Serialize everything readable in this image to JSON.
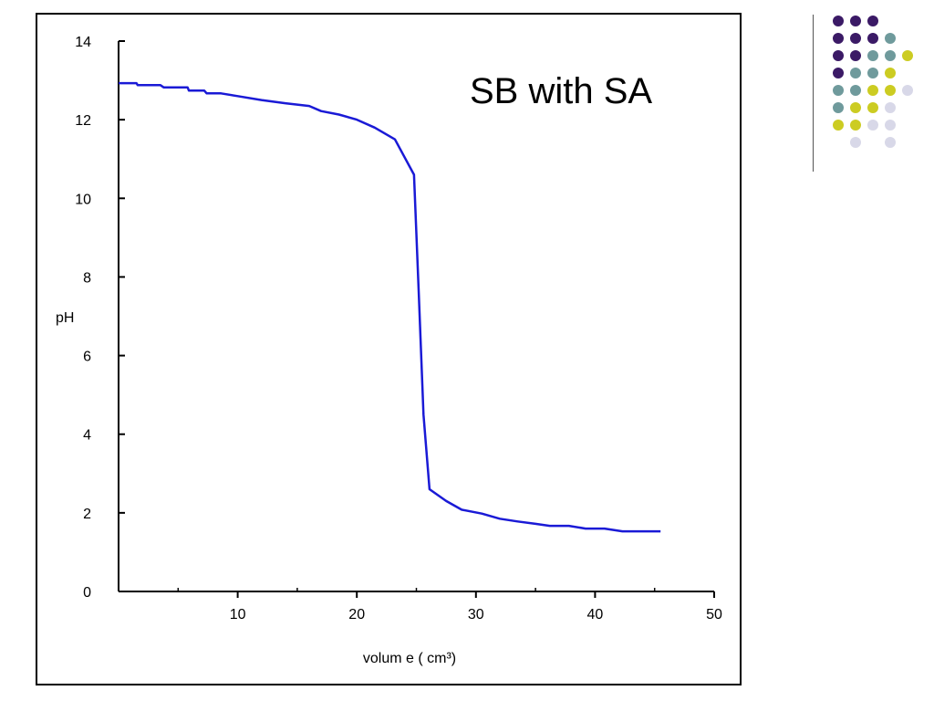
{
  "chart_data": {
    "type": "line",
    "title": "SB with SA",
    "xlabel": "volum e ( cm³)",
    "ylabel": "pH",
    "xlim": [
      0,
      50
    ],
    "ylim": [
      0,
      14
    ],
    "x_ticks": [
      10,
      20,
      30,
      40,
      50
    ],
    "y_ticks": [
      0,
      2,
      4,
      6,
      8,
      10,
      12,
      14
    ],
    "grid": false,
    "legend": "none",
    "series": [
      {
        "color": "#1a1ad6",
        "points": [
          [
            0.0,
            12.93
          ],
          [
            1.5,
            12.93
          ],
          [
            1.6,
            12.88
          ],
          [
            3.5,
            12.88
          ],
          [
            3.8,
            12.82
          ],
          [
            5.8,
            12.82
          ],
          [
            5.9,
            12.74
          ],
          [
            7.2,
            12.74
          ],
          [
            7.4,
            12.67
          ],
          [
            8.6,
            12.67
          ],
          [
            10.0,
            12.6
          ],
          [
            12.0,
            12.5
          ],
          [
            14.0,
            12.42
          ],
          [
            16.0,
            12.35
          ],
          [
            17.0,
            12.22
          ],
          [
            18.5,
            12.13
          ],
          [
            20.0,
            12.0
          ],
          [
            21.5,
            11.8
          ],
          [
            23.2,
            11.5
          ],
          [
            24.8,
            10.6
          ],
          [
            25.2,
            7.6
          ],
          [
            25.6,
            4.5
          ],
          [
            26.1,
            2.6
          ],
          [
            27.5,
            2.3
          ],
          [
            28.8,
            2.08
          ],
          [
            30.5,
            1.98
          ],
          [
            32.0,
            1.85
          ],
          [
            33.5,
            1.78
          ],
          [
            35.0,
            1.72
          ],
          [
            36.2,
            1.67
          ],
          [
            37.8,
            1.67
          ],
          [
            39.2,
            1.6
          ],
          [
            40.8,
            1.6
          ],
          [
            42.3,
            1.53
          ],
          [
            45.5,
            1.53
          ]
        ]
      }
    ]
  },
  "decoration": {
    "dot_colors": [
      "#3b1a66",
      "#6f9a9c",
      "#cccc22",
      "#d8d8e8"
    ]
  }
}
